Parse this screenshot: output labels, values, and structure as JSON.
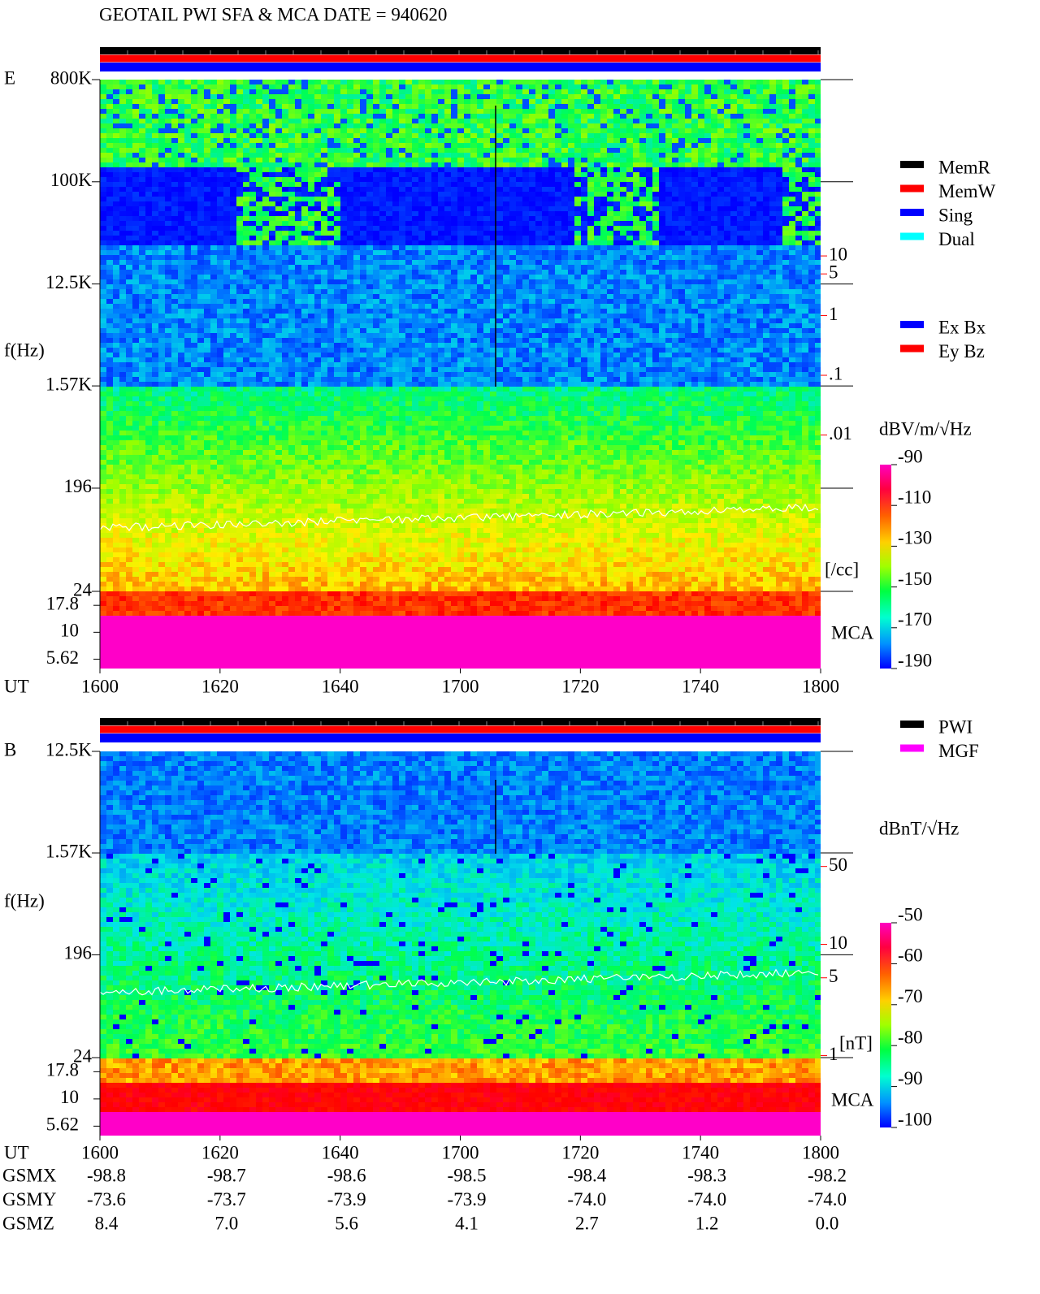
{
  "title": "GEOTAIL  PWI SFA & MCA   DATE = 940620",
  "chart_data": [
    {
      "type": "spectrogram",
      "panel_label": "E",
      "y_label": "f(Hz)",
      "x_label": "UT",
      "x_ticks": [
        "1600",
        "1620",
        "1640",
        "1700",
        "1720",
        "1740",
        "1800"
      ],
      "log_y": true,
      "ylim": [
        24,
        800000
      ],
      "yticks": [
        {
          "value": 800000,
          "label": "800K"
        },
        {
          "value": 100000,
          "label": "100K"
        },
        {
          "value": 12500,
          "label": "12.5K"
        },
        {
          "value": 1570,
          "label": "1.57K"
        },
        196,
        24
      ],
      "mca_label": "MCA",
      "mca_ylim": [
        4.6,
        24
      ],
      "mca_yticks": [
        17.8,
        10,
        5.62
      ],
      "y2lim": [
        2.4e-05,
        9000
      ],
      "y2ticks": [
        10,
        5,
        1,
        {
          "value": 0.1,
          "label": ".1"
        },
        {
          "value": 0.01,
          "label": ".01"
        }
      ],
      "y2_label": "[/cc]",
      "y2_color": "#ff0000",
      "colorbar": {
        "label": "dBV/m/√Hz",
        "clim": [
          -190,
          -90
        ],
        "ticks": [
          -90,
          -110,
          -130,
          -150,
          -170,
          -190
        ]
      },
      "status_bars": [
        "#000000",
        "#ff0000",
        "#0000ff"
      ],
      "legend": [
        {
          "name": "MemR",
          "color": "#000000"
        },
        {
          "name": "MemW",
          "color": "#ff0000"
        },
        {
          "name": "Sing",
          "color": "#0000ff"
        },
        {
          "name": "Dual",
          "color": "#00ffff"
        }
      ],
      "legend2": [
        {
          "name": "Ex Bx",
          "color": "#0000ff"
        },
        {
          "name": "Ey Bz",
          "color": "#ff0000"
        }
      ]
    },
    {
      "type": "spectrogram",
      "panel_label": "B",
      "y_label": "f(Hz)",
      "x_label": "UT",
      "x_ticks": [
        "1600",
        "1620",
        "1640",
        "1700",
        "1720",
        "1740",
        "1800"
      ],
      "log_y": true,
      "ylim": [
        24,
        12500
      ],
      "yticks": [
        {
          "value": 12500,
          "label": "12.5K"
        },
        {
          "value": 1570,
          "label": "1.57K"
        },
        196,
        24
      ],
      "mca_label": "MCA",
      "mca_ylim": [
        4.6,
        24
      ],
      "mca_yticks": [
        17.8,
        10,
        5.62
      ],
      "y2lim": [
        0.96,
        540
      ],
      "y2ticks": [
        50,
        10,
        5,
        1
      ],
      "y2_label": "[nT]",
      "y2_color": "#ff0000",
      "colorbar": {
        "label": "dBnT/√Hz",
        "clim": [
          -100,
          -50
        ],
        "ticks": [
          -50,
          -60,
          -70,
          -80,
          -90,
          -100
        ]
      },
      "status_bars": [
        "#000000",
        "#ff0000",
        "#0000ff"
      ],
      "legend": [
        {
          "name": "PWI",
          "color": "#000000"
        },
        {
          "name": "MGF",
          "color": "#ff00ff"
        }
      ]
    }
  ],
  "orbit": {
    "rows": [
      {
        "name": "GSMX",
        "values": [
          -98.8,
          -98.7,
          -98.6,
          -98.5,
          -98.4,
          -98.3,
          -98.2
        ]
      },
      {
        "name": "GSMY",
        "values": [
          -73.6,
          -73.7,
          -73.9,
          -73.9,
          {
            "value": -74,
            "label": "-74.0"
          },
          {
            "value": -74,
            "label": "-74.0"
          },
          {
            "value": -74,
            "label": "-74.0"
          }
        ]
      },
      {
        "name": "GSMZ",
        "values": [
          8.4,
          {
            "value": 7,
            "label": "7.0"
          },
          5.6,
          4.1,
          2.7,
          1.2,
          {
            "value": 0,
            "label": "0.0"
          }
        ]
      }
    ]
  }
}
